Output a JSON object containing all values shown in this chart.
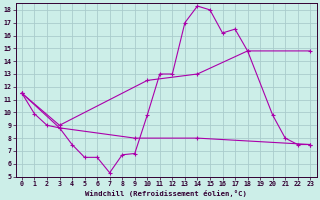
{
  "xlabel": "Windchill (Refroidissement éolien,°C)",
  "xlim": [
    -0.5,
    23.5
  ],
  "ylim": [
    5,
    18.5
  ],
  "xticks": [
    0,
    1,
    2,
    3,
    4,
    5,
    6,
    7,
    8,
    9,
    10,
    11,
    12,
    13,
    14,
    15,
    16,
    17,
    18,
    19,
    20,
    21,
    22,
    23
  ],
  "yticks": [
    5,
    6,
    7,
    8,
    9,
    10,
    11,
    12,
    13,
    14,
    15,
    16,
    17,
    18
  ],
  "background_color": "#cceee8",
  "grid_color": "#aacccc",
  "line_color": "#aa00aa",
  "series": [
    {
      "x": [
        0,
        1,
        2,
        3,
        4,
        5,
        6,
        7,
        8,
        9,
        10,
        11,
        12,
        13,
        14,
        15,
        16,
        17,
        18,
        20,
        21,
        22,
        23
      ],
      "y": [
        11.5,
        9.9,
        9.0,
        8.8,
        7.5,
        6.5,
        6.5,
        5.3,
        6.7,
        6.8,
        9.8,
        13.0,
        13.0,
        17.0,
        18.3,
        18.0,
        16.2,
        16.5,
        14.8,
        9.8,
        8.0,
        7.5,
        7.5
      ]
    },
    {
      "x": [
        0,
        3,
        10,
        14,
        18,
        23
      ],
      "y": [
        11.5,
        9.0,
        12.5,
        13.0,
        14.8,
        14.8
      ]
    },
    {
      "x": [
        0,
        3,
        9,
        14,
        23
      ],
      "y": [
        11.5,
        8.8,
        8.0,
        8.0,
        7.5
      ]
    }
  ]
}
